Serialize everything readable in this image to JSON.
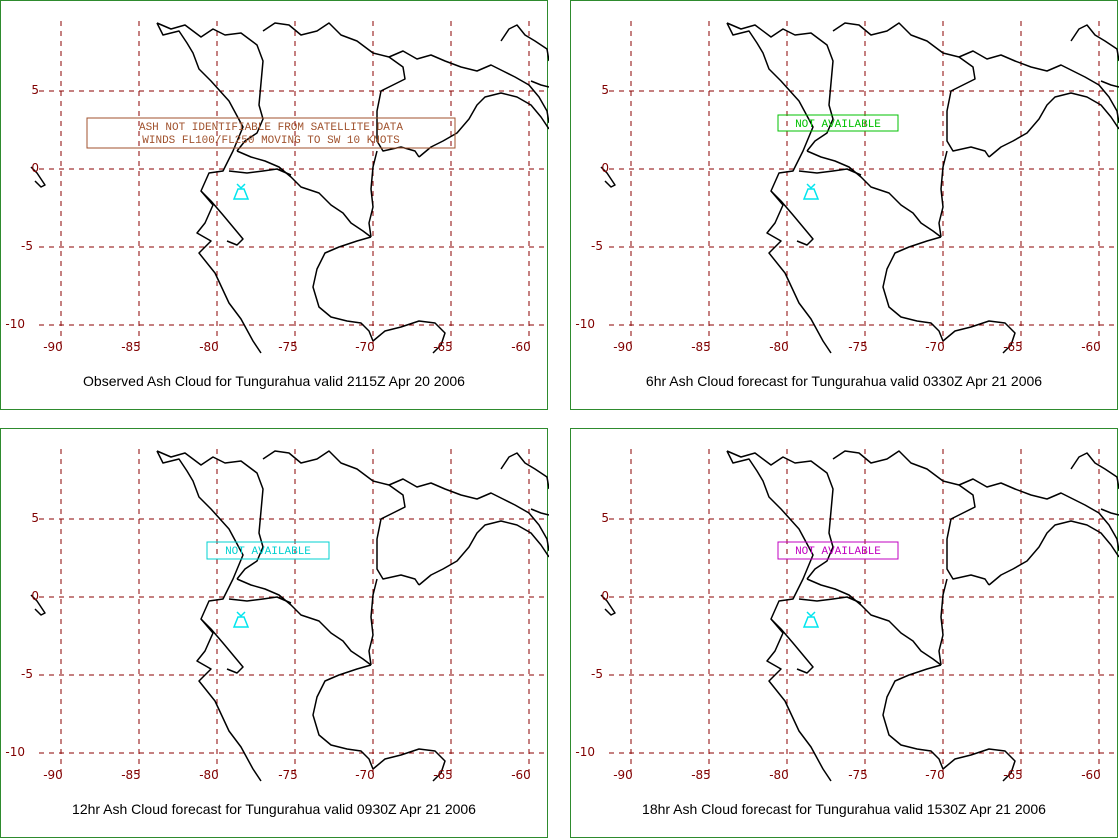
{
  "map": {
    "lon_ticks": [
      "-90",
      "-85",
      "-80",
      "-75",
      "-70",
      "-65",
      "-60"
    ],
    "lat_ticks": [
      "5",
      "0",
      "-5",
      "-10"
    ],
    "grid_color": "#8b0000",
    "coast_color": "#000000",
    "volcano_color": "#00e5ee"
  },
  "panels": [
    {
      "caption": "Observed Ash Cloud for Tungurahua valid 2115Z Apr 20 2006",
      "msg_color": "#a0522d",
      "msg_lines": [
        "ASH NOT IDENTIFIABLE FROM SATELLITE DATA",
        "WINDS FL100/FL250 MOVING TO SW 10 KNOTS"
      ]
    },
    {
      "caption": "6hr Ash Cloud forecast for Tungurahua valid 0330Z Apr 21 2006",
      "msg_color": "#00c000",
      "msg_lines": [
        "NOT AVAILABLE"
      ]
    },
    {
      "caption": "12hr Ash Cloud forecast for Tungurahua valid 0930Z Apr 21 2006",
      "msg_color": "#00d0d0",
      "msg_lines": [
        "NOT AVAILABLE"
      ]
    },
    {
      "caption": "18hr Ash Cloud forecast for Tungurahua valid 1530Z Apr 21 2006",
      "msg_color": "#c000c0",
      "msg_lines": [
        "NOT AVAILABLE"
      ]
    }
  ]
}
